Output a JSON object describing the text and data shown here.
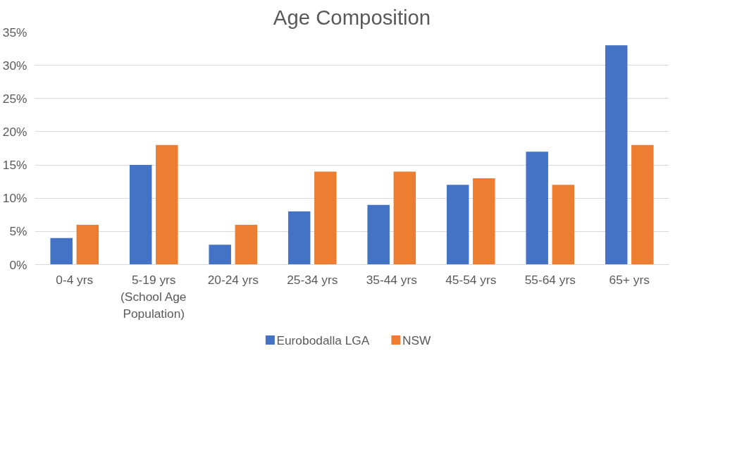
{
  "chart_data": {
    "type": "bar",
    "title": "Age Composition",
    "categories": [
      "0-4 yrs",
      "5-19 yrs (School Age Population)",
      "20-24 yrs",
      "25-34 yrs",
      "35-44 yrs",
      "45-54 yrs",
      "55-64 yrs",
      "65+ yrs"
    ],
    "series": [
      {
        "name": "Eurobodalla LGA",
        "color": "#4472c4",
        "values": [
          4,
          15,
          3,
          8,
          9,
          12,
          17,
          33
        ]
      },
      {
        "name": "NSW",
        "color": "#ed7d31",
        "values": [
          6,
          18,
          6,
          14,
          14,
          13,
          12,
          18
        ]
      }
    ],
    "ylim": [
      0,
      35
    ],
    "yticks": [
      {
        "value": 0,
        "label": "0%"
      },
      {
        "value": 5,
        "label": "5%"
      },
      {
        "value": 10,
        "label": "10%"
      },
      {
        "value": 15,
        "label": "15%"
      },
      {
        "value": 20,
        "label": "20%"
      },
      {
        "value": 25,
        "label": "25%"
      },
      {
        "value": 30,
        "label": "30%"
      },
      {
        "value": 35,
        "label": "35%"
      }
    ],
    "grid": "y",
    "legend": "bottom"
  }
}
